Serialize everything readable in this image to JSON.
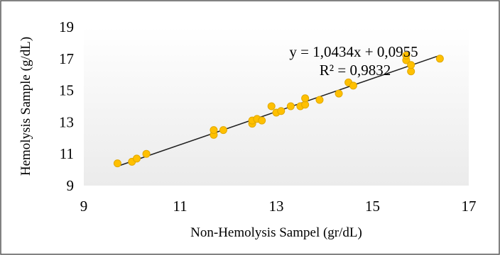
{
  "chart_data": {
    "type": "scatter",
    "title": "",
    "xlabel": "Non-Hemolysis Sampel (gr/dL)",
    "ylabel": "Hemolysis Sample  (g/dL)",
    "xlim": [
      9,
      17
    ],
    "ylim": [
      9,
      19
    ],
    "xticks": [
      9,
      11,
      13,
      15,
      17
    ],
    "yticks": [
      9,
      11,
      13,
      15,
      17,
      19
    ],
    "grid": false,
    "legend": "none",
    "marker_color": "#ffc000",
    "marker_edge_color": "#e0a800",
    "plot_background": [
      "#ffffff",
      "#ebebeb"
    ],
    "trendline": {
      "slope": 1.0434,
      "intercept": 0.0955,
      "x_range": [
        9.7,
        16.4
      ],
      "color": "#1f1f1f",
      "equation_label": "y = 1,0434x + 0,0955",
      "r2_label": "R² = 0,9832"
    },
    "points": [
      {
        "x": 9.7,
        "y": 10.4
      },
      {
        "x": 10.0,
        "y": 10.5
      },
      {
        "x": 10.1,
        "y": 10.7
      },
      {
        "x": 10.3,
        "y": 11.0
      },
      {
        "x": 11.7,
        "y": 12.2
      },
      {
        "x": 11.7,
        "y": 12.5
      },
      {
        "x": 11.9,
        "y": 12.5
      },
      {
        "x": 12.5,
        "y": 12.9
      },
      {
        "x": 12.5,
        "y": 13.1
      },
      {
        "x": 12.6,
        "y": 13.2
      },
      {
        "x": 12.7,
        "y": 13.1
      },
      {
        "x": 12.9,
        "y": 14.0
      },
      {
        "x": 13.0,
        "y": 13.6
      },
      {
        "x": 13.1,
        "y": 13.7
      },
      {
        "x": 13.3,
        "y": 14.0
      },
      {
        "x": 13.5,
        "y": 14.0
      },
      {
        "x": 13.6,
        "y": 14.1
      },
      {
        "x": 13.6,
        "y": 14.5
      },
      {
        "x": 13.9,
        "y": 14.4
      },
      {
        "x": 14.3,
        "y": 14.8
      },
      {
        "x": 14.5,
        "y": 15.5
      },
      {
        "x": 14.6,
        "y": 15.3
      },
      {
        "x": 15.7,
        "y": 16.9
      },
      {
        "x": 15.7,
        "y": 17.2
      },
      {
        "x": 15.8,
        "y": 16.2
      },
      {
        "x": 15.8,
        "y": 16.6
      },
      {
        "x": 16.4,
        "y": 17.0
      }
    ]
  }
}
